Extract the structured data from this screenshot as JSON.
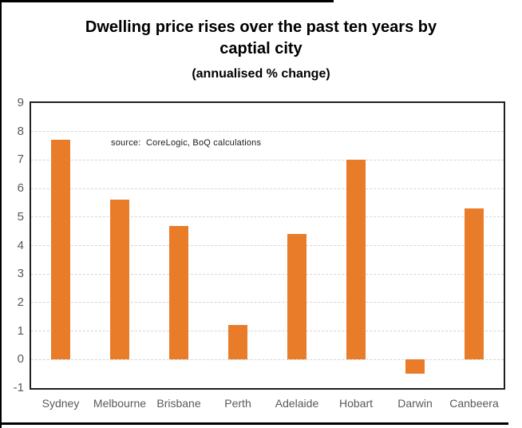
{
  "title": {
    "line1": "Dwelling price rises over the past ten years by",
    "line2": "captial city",
    "subtitle": "(annualised % change)"
  },
  "chart_data": {
    "type": "bar",
    "title": "Dwelling price rises over the past ten years by captial city",
    "subtitle": "(annualised % change)",
    "categories": [
      "Sydney",
      "Melbourne",
      "Brisbane",
      "Perth",
      "Adelaide",
      "Hobart",
      "Darwin",
      "Canbeera"
    ],
    "values": [
      7.7,
      5.6,
      4.7,
      1.2,
      4.4,
      7.0,
      -0.5,
      5.3
    ],
    "ylim": [
      -1,
      9
    ],
    "yticks": [
      9,
      8,
      7,
      6,
      5,
      4,
      3,
      2,
      1,
      0,
      -1
    ],
    "xlabel": "",
    "ylabel": "",
    "grid": "horizontal-dashed",
    "legend": "none",
    "annotation": "source:  CoreLogic, BoQ calculations",
    "colors": {
      "bar": "#E87C29",
      "gridline": "#D6D6D6",
      "plot_border": "#1F1F1F",
      "axis_text": "#595959",
      "title_text": "#000000"
    }
  }
}
